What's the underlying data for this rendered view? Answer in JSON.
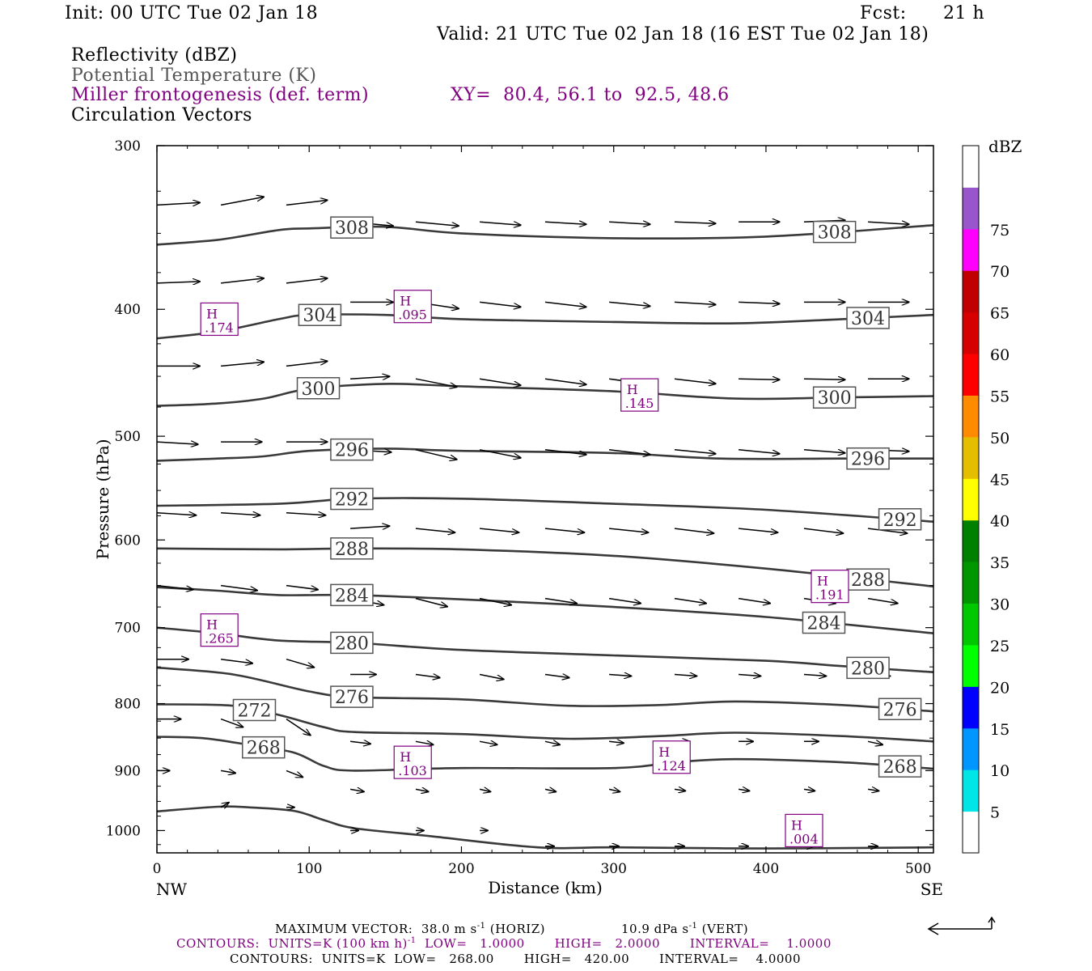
{
  "header": {
    "init": "Init: 00 UTC Tue 02 Jan 18",
    "fcst_label": "Fcst:",
    "fcst_value": "21 h",
    "valid": "Valid: 21 UTC Tue 02 Jan 18 (16 EST Tue 02 Jan 18)"
  },
  "fields": {
    "reflectivity": "Reflectivity (dBZ)",
    "theta": "Potential Temperature (K)",
    "miller": "Miller frontogenesis (def. term)",
    "xy": "XY=  80.4, 56.1 to  92.5, 48.6",
    "vectors": "Circulation Vectors"
  },
  "footer": {
    "max_vector": "MAXIMUM VECTOR:  38.0 m s",
    "max_vector_sup": "-1",
    "max_vector_horiz": " (HORIZ)",
    "vert": "10.9 dPa s",
    "vert_sup": "-1",
    "vert_tail": " (VERT)",
    "contours1": "CONTOURS:  UNITS=K (100 km h)",
    "contours1_sup": "-1",
    "contours1_tail": "  LOW=   1.0000       HIGH=   2.0000       INTERVAL=    1.0000",
    "contours2": "CONTOURS:  UNITS=K  LOW=   268.00       HIGH=   420.00       INTERVAL=    4.0000"
  },
  "colorbar": {
    "unit": "dBZ",
    "levels": [
      5,
      10,
      15,
      20,
      25,
      30,
      35,
      40,
      45,
      50,
      55,
      60,
      65,
      70,
      75
    ],
    "colors": [
      "#ffffff",
      "#00e6e6",
      "#0096ff",
      "#0000ff",
      "#00ff00",
      "#00c800",
      "#009600",
      "#008000",
      "#ffff00",
      "#e6be00",
      "#ff8c00",
      "#ff0000",
      "#d60000",
      "#c00000",
      "#ff00ff",
      "#9955cc",
      "#ffffff"
    ]
  },
  "chart_data": {
    "type": "cross-section",
    "xlabel": "Distance (km)",
    "ylabel": "Pressure (hPa)",
    "xlim": [
      0,
      510
    ],
    "ylim": [
      300,
      1040
    ],
    "y_scale": "log",
    "x_ticks": [
      0,
      100,
      200,
      300,
      400,
      500
    ],
    "y_ticks": [
      300,
      400,
      500,
      600,
      700,
      800,
      900,
      1000
    ],
    "x_end_labels": {
      "left": "NW",
      "right": "SE"
    },
    "theta_contours": [
      {
        "level": 308,
        "points": [
          [
            0,
            357
          ],
          [
            40,
            354
          ],
          [
            80,
            348
          ],
          [
            100,
            347
          ],
          [
            150,
            346
          ],
          [
            200,
            350
          ],
          [
            300,
            353
          ],
          [
            400,
            352
          ],
          [
            510,
            345
          ]
        ],
        "labels": [
          [
            128,
            "308"
          ],
          [
            445,
            "308"
          ]
        ]
      },
      {
        "level": 304,
        "points": [
          [
            0,
            421
          ],
          [
            40,
            416
          ],
          [
            80,
            407
          ],
          [
            100,
            404
          ],
          [
            150,
            404
          ],
          [
            200,
            407
          ],
          [
            300,
            409
          ],
          [
            380,
            410
          ],
          [
            450,
            407
          ],
          [
            510,
            404
          ]
        ],
        "labels": [
          [
            107,
            "304"
          ],
          [
            467,
            "304"
          ]
        ]
      },
      {
        "level": 300,
        "points": [
          [
            0,
            474
          ],
          [
            40,
            472
          ],
          [
            70,
            468
          ],
          [
            100,
            460
          ],
          [
            150,
            456
          ],
          [
            200,
            458
          ],
          [
            300,
            462
          ],
          [
            380,
            468
          ],
          [
            450,
            467
          ],
          [
            510,
            466
          ]
        ],
        "labels": [
          [
            106,
            "300"
          ],
          [
            445,
            "300"
          ]
        ]
      },
      {
        "level": 296,
        "points": [
          [
            0,
            522
          ],
          [
            40,
            520
          ],
          [
            70,
            518
          ],
          [
            100,
            513
          ],
          [
            150,
            511
          ],
          [
            200,
            513
          ],
          [
            300,
            515
          ],
          [
            370,
            520
          ],
          [
            450,
            520
          ],
          [
            510,
            520
          ]
        ],
        "labels": [
          [
            128,
            "296"
          ],
          [
            467,
            "296"
          ]
        ]
      },
      {
        "level": 292,
        "points": [
          [
            0,
            565
          ],
          [
            80,
            563
          ],
          [
            130,
            558
          ],
          [
            200,
            558
          ],
          [
            300,
            563
          ],
          [
            400,
            569
          ],
          [
            510,
            581
          ]
        ],
        "labels": [
          [
            128,
            "292"
          ],
          [
            488,
            "292"
          ]
        ]
      },
      {
        "level": 288,
        "points": [
          [
            0,
            609
          ],
          [
            80,
            610
          ],
          [
            130,
            609
          ],
          [
            200,
            610
          ],
          [
            300,
            617
          ],
          [
            400,
            631
          ],
          [
            510,
            651
          ]
        ],
        "labels": [
          [
            128,
            "288"
          ],
          [
            467,
            "288"
          ]
        ]
      },
      {
        "level": 284,
        "points": [
          [
            0,
            652
          ],
          [
            40,
            656
          ],
          [
            80,
            661
          ],
          [
            130,
            661
          ],
          [
            200,
            666
          ],
          [
            300,
            675
          ],
          [
            400,
            687
          ],
          [
            510,
            707
          ]
        ],
        "labels": [
          [
            128,
            "284"
          ],
          [
            438,
            "284"
          ]
        ]
      },
      {
        "level": 280,
        "points": [
          [
            0,
            700
          ],
          [
            40,
            707
          ],
          [
            80,
            716
          ],
          [
            130,
            719
          ],
          [
            200,
            728
          ],
          [
            300,
            735
          ],
          [
            400,
            742
          ],
          [
            450,
            749
          ],
          [
            510,
            757
          ]
        ],
        "labels": [
          [
            128,
            "280"
          ],
          [
            467,
            "280"
          ]
        ]
      },
      {
        "level": 276,
        "points": [
          [
            0,
            751
          ],
          [
            50,
            760
          ],
          [
            100,
            783
          ],
          [
            130,
            791
          ],
          [
            200,
            794
          ],
          [
            270,
            803
          ],
          [
            330,
            802
          ],
          [
            380,
            797
          ],
          [
            450,
            802
          ],
          [
            510,
            811
          ]
        ],
        "labels": [
          [
            128,
            "276"
          ],
          [
            488,
            "276"
          ]
        ]
      },
      {
        "level": 272,
        "points": [
          [
            0,
            801
          ],
          [
            50,
            803
          ],
          [
            80,
            816
          ],
          [
            110,
            834
          ],
          [
            130,
            841
          ],
          [
            200,
            844
          ],
          [
            270,
            851
          ],
          [
            330,
            847
          ],
          [
            380,
            842
          ],
          [
            450,
            847
          ],
          [
            510,
            855
          ]
        ],
        "labels": [
          [
            64,
            "272"
          ]
        ]
      },
      {
        "level": 268,
        "points": [
          [
            0,
            848
          ],
          [
            30,
            850
          ],
          [
            60,
            860
          ],
          [
            90,
            872
          ],
          [
            110,
            893
          ],
          [
            130,
            900
          ],
          [
            200,
            896
          ],
          [
            300,
            896
          ],
          [
            340,
            887
          ],
          [
            380,
            882
          ],
          [
            450,
            887
          ],
          [
            510,
            897
          ]
        ],
        "labels": [
          [
            70,
            "268"
          ],
          [
            488,
            "268"
          ]
        ]
      },
      {
        "level": null,
        "points": [
          [
            0,
            967
          ],
          [
            40,
            959
          ],
          [
            60,
            960
          ],
          [
            90,
            966
          ],
          [
            110,
            982
          ],
          [
            130,
            996
          ],
          [
            180,
            1010
          ],
          [
            250,
            1030
          ],
          [
            300,
            1030
          ],
          [
            400,
            1032
          ],
          [
            510,
            1030
          ]
        ],
        "labels": []
      }
    ],
    "frontogenesis_highs": [
      {
        "x": 41,
        "p": 407,
        "label": "H",
        "value": ".174"
      },
      {
        "x": 168,
        "p": 398,
        "label": "H",
        "value": ".095"
      },
      {
        "x": 317,
        "p": 465,
        "label": "H",
        "value": ".145"
      },
      {
        "x": 442,
        "p": 651,
        "label": "H",
        "value": ".191"
      },
      {
        "x": 41,
        "p": 703,
        "label": "H",
        "value": ".265"
      },
      {
        "x": 168,
        "p": 887,
        "label": "H",
        "value": ".103"
      },
      {
        "x": 338,
        "p": 879,
        "label": "H",
        "value": ".124"
      },
      {
        "x": 425,
        "p": 1000,
        "label": "H",
        "value": ".004"
      }
    ],
    "circulation_vectors": [
      {
        "p": 333,
        "x": [
          0,
          42,
          85
        ],
        "dx": [
          42,
          42,
          40
        ],
        "dp": [
          -3,
          -10,
          -6
        ]
      },
      {
        "p": 343,
        "x": [
          127,
          170,
          212,
          255,
          297,
          340,
          382,
          425,
          467
        ],
        "dx": [
          42,
          42,
          40,
          40,
          40,
          40,
          40,
          40,
          40
        ],
        "dp": [
          5,
          5,
          4,
          3,
          3,
          2,
          0,
          -2,
          3
        ]
      },
      {
        "p": 382,
        "x": [
          0,
          42,
          85
        ],
        "dx": [
          42,
          42,
          40
        ],
        "dp": [
          -2,
          -6,
          -6
        ]
      },
      {
        "p": 395,
        "x": [
          127,
          170,
          212,
          255,
          297,
          340,
          382,
          425,
          467
        ],
        "dx": [
          42,
          42,
          40,
          40,
          40,
          40,
          40,
          40,
          40
        ],
        "dp": [
          0,
          8,
          6,
          6,
          5,
          3,
          2,
          0,
          0
        ]
      },
      {
        "p": 442,
        "x": [
          0,
          42,
          85
        ],
        "dx": [
          42,
          42,
          40
        ],
        "dp": [
          0,
          -5,
          -6
        ]
      },
      {
        "p": 452,
        "x": [
          127,
          170,
          212,
          255,
          297,
          340,
          382,
          425,
          467
        ],
        "dx": [
          38,
          40,
          40,
          40,
          40,
          40,
          40,
          40,
          40
        ],
        "dp": [
          -3,
          10,
          8,
          7,
          7,
          6,
          1,
          1,
          0
        ]
      },
      {
        "p": 505,
        "x": [
          0,
          42,
          85
        ],
        "dx": [
          40,
          40,
          40
        ],
        "dp": [
          3,
          0,
          0
        ]
      },
      {
        "p": 512,
        "x": [
          127,
          170,
          212,
          255,
          297,
          340,
          382,
          425,
          467
        ],
        "dx": [
          40,
          40,
          40,
          40,
          40,
          40,
          40,
          40,
          40
        ],
        "dp": [
          3,
          12,
          10,
          6,
          6,
          5,
          5,
          4,
          2
        ]
      },
      {
        "p": 572,
        "x": [
          0,
          42,
          85
        ],
        "dx": [
          38,
          38,
          38
        ],
        "dp": [
          3,
          3,
          3
        ]
      },
      {
        "p": 588,
        "x": [
          127,
          170,
          212,
          255,
          297,
          340,
          382,
          425,
          467
        ],
        "dx": [
          38,
          38,
          38,
          38,
          38,
          38,
          38,
          38,
          38
        ],
        "dp": [
          -3,
          5,
          5,
          5,
          5,
          6,
          5,
          6,
          6
        ]
      },
      {
        "p": 650,
        "x": [
          0,
          42,
          85
        ],
        "dx": [
          35,
          35,
          30
        ],
        "dp": [
          5,
          6,
          5
        ]
      },
      {
        "p": 665,
        "x": [
          127,
          170,
          212,
          255,
          297,
          340,
          382,
          425,
          467
        ],
        "dx": [
          32,
          30,
          30,
          30,
          30,
          30,
          30,
          30,
          28
        ],
        "dp": [
          8,
          10,
          8,
          6,
          6,
          6,
          6,
          6,
          6
        ]
      },
      {
        "p": 740,
        "x": [
          0,
          42,
          85
        ],
        "dx": [
          30,
          30,
          26
        ],
        "dp": [
          0,
          5,
          10
        ]
      },
      {
        "p": 760,
        "x": [
          127,
          170,
          212,
          255,
          297,
          340,
          382,
          425,
          467
        ],
        "dx": [
          24,
          22,
          22,
          22,
          20,
          20,
          20,
          20,
          20
        ],
        "dp": [
          0,
          4,
          6,
          4,
          2,
          2,
          2,
          2,
          2
        ]
      },
      {
        "p": 822,
        "x": [
          0,
          42,
          85
        ],
        "dx": [
          22,
          20,
          22
        ],
        "dp": [
          0,
          10,
          20
        ]
      },
      {
        "p": 855,
        "x": [
          127,
          170,
          212,
          255,
          297,
          340,
          382,
          425,
          467
        ],
        "dx": [
          18,
          15,
          15,
          12,
          12,
          12,
          12,
          12,
          12
        ],
        "dp": [
          3,
          4,
          4,
          4,
          2,
          0,
          0,
          0,
          4
        ]
      },
      {
        "p": 900,
        "x": [
          0,
          42,
          85
        ],
        "dx": [
          10,
          12,
          14
        ],
        "dp": [
          0,
          3,
          8
        ]
      },
      {
        "p": 930,
        "x": [
          127,
          170,
          212,
          255,
          297,
          340,
          382,
          425,
          467
        ],
        "dx": [
          11,
          10,
          8,
          8,
          8,
          8,
          8,
          8,
          8
        ],
        "dp": [
          3,
          3,
          3,
          3,
          3,
          2,
          2,
          2,
          2
        ]
      },
      {
        "p": 960,
        "x": [
          42,
          85
        ],
        "dx": [
          5,
          5
        ],
        "dp": [
          -6,
          0
        ]
      },
      {
        "p": 1000,
        "x": [
          127,
          170,
          212
        ],
        "dx": [
          5,
          5,
          5
        ],
        "dp": [
          0,
          0,
          0
        ]
      },
      {
        "p": 1028,
        "x": [
          255,
          297,
          340,
          382,
          425,
          467
        ],
        "dx": [
          6,
          7,
          7,
          7,
          7,
          7
        ],
        "dp": [
          0,
          0,
          0,
          0,
          0,
          0
        ]
      }
    ]
  }
}
